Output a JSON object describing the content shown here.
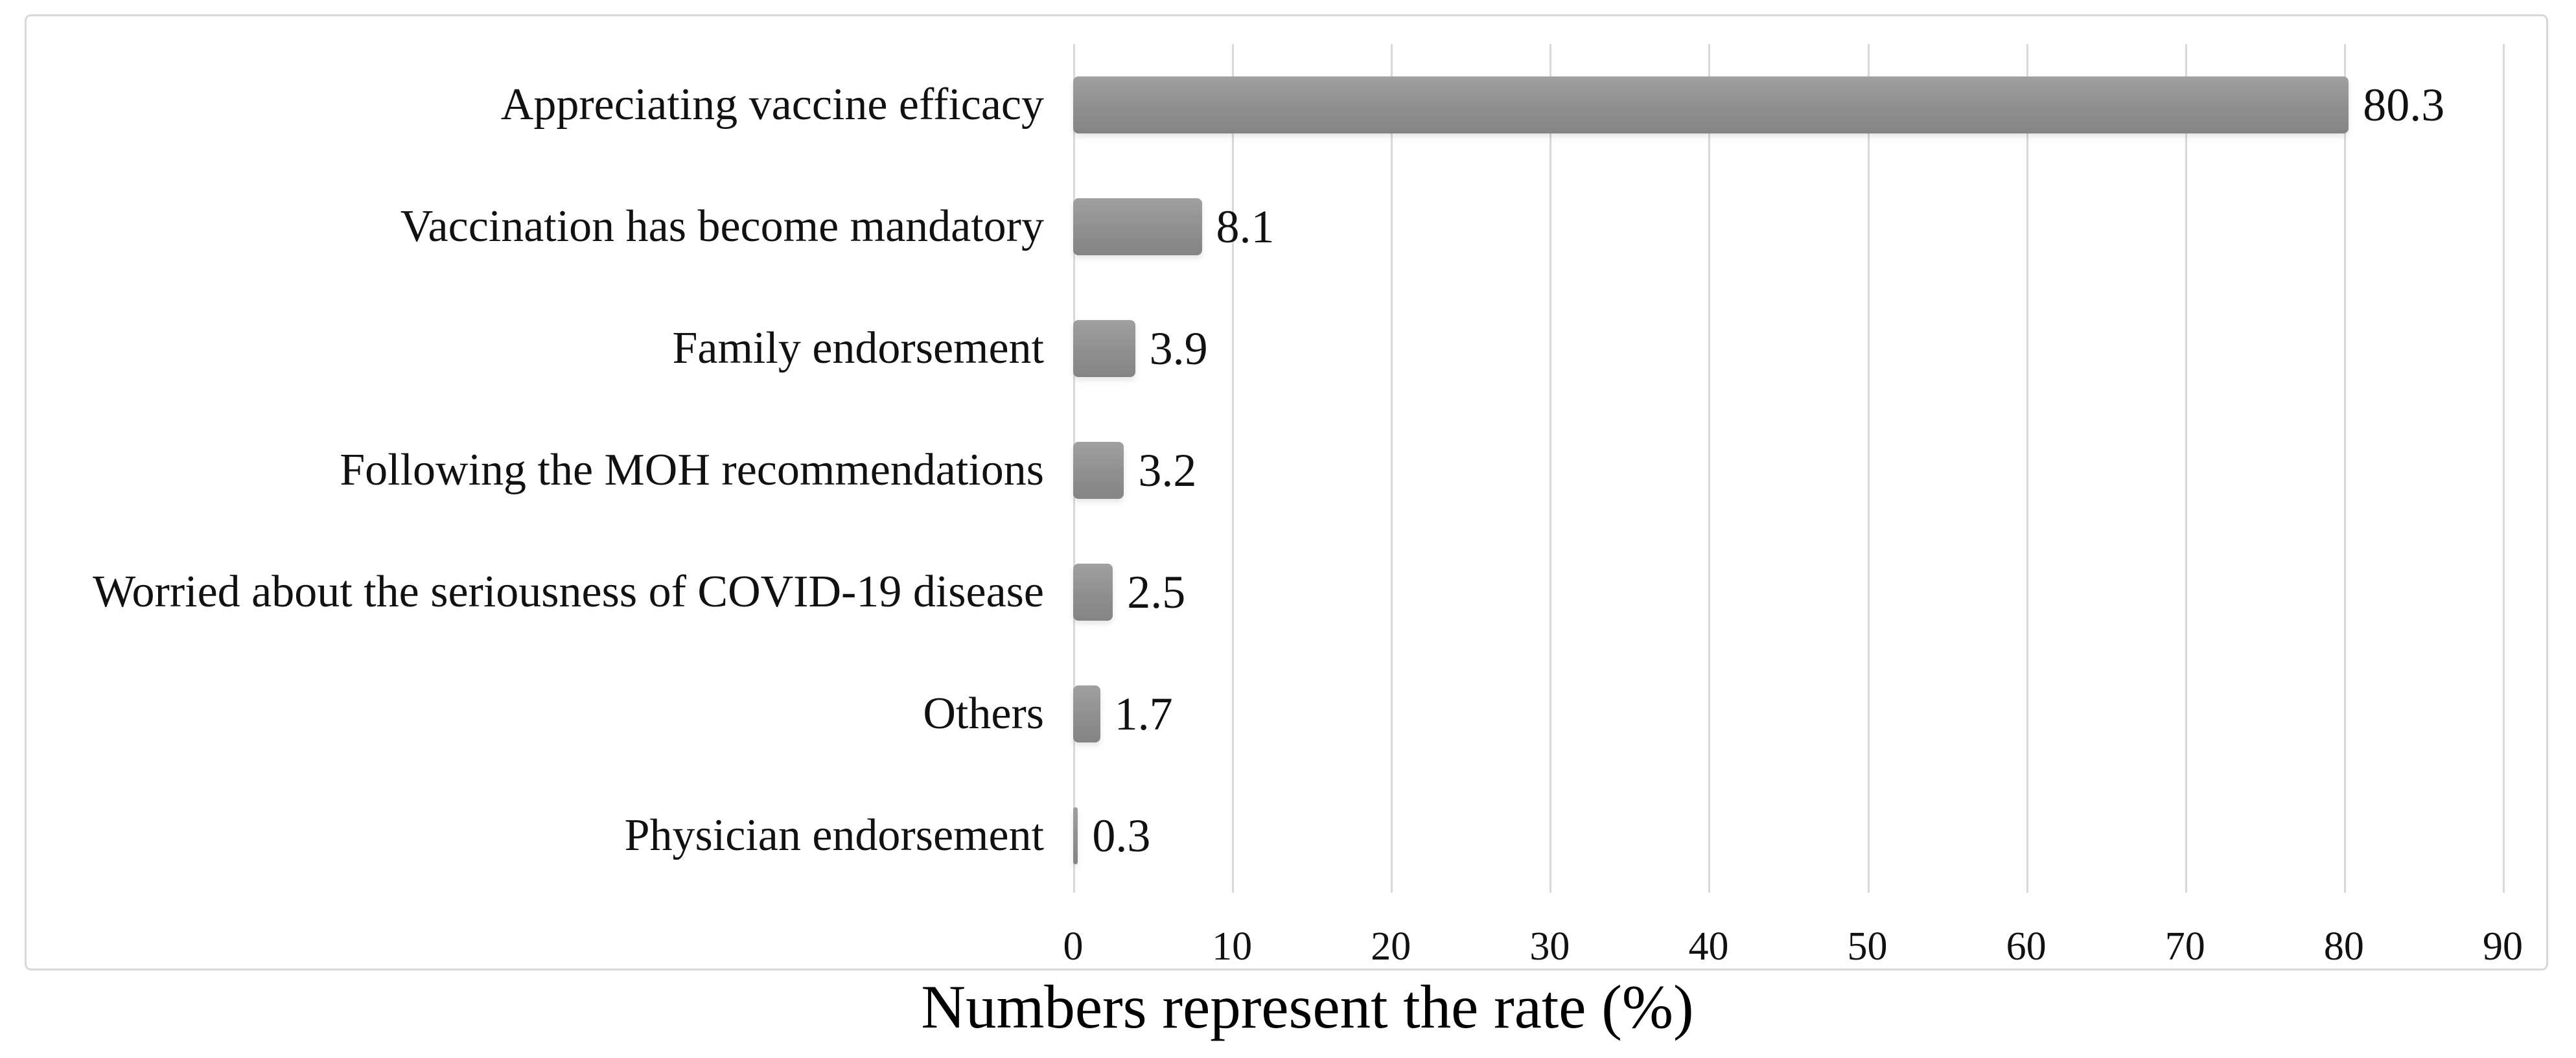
{
  "figure": {
    "caption": "Numbers represent the rate (%)"
  },
  "chart_data": {
    "type": "bar",
    "orientation": "horizontal",
    "title": "",
    "xlabel": "",
    "ylabel": "",
    "categories": [
      "Appreciating vaccine efficacy",
      "Vaccination has become mandatory",
      "Family endorsement",
      "Following the MOH recommendations",
      "Worried about the seriousness of COVID-19 disease",
      "Others",
      "Physician endorsement"
    ],
    "values": [
      80.3,
      8.1,
      3.9,
      3.2,
      2.5,
      1.7,
      0.3
    ],
    "value_labels": [
      "80.3",
      "8.1",
      "3.9",
      "3.2",
      "2.5",
      "1.7",
      "0.3"
    ],
    "x_ticks": [
      0,
      10,
      20,
      30,
      40,
      50,
      60,
      70,
      80,
      90
    ],
    "xlim": [
      0,
      90
    ],
    "grid": "vertical",
    "legend": "none",
    "colors": {
      "bar": "#8f8f8f",
      "gridline": "#d9d9d9",
      "frame_border": "#d8d8d8",
      "text": "#111111",
      "background": "#ffffff"
    },
    "caption": "Numbers represent the rate (%)"
  }
}
